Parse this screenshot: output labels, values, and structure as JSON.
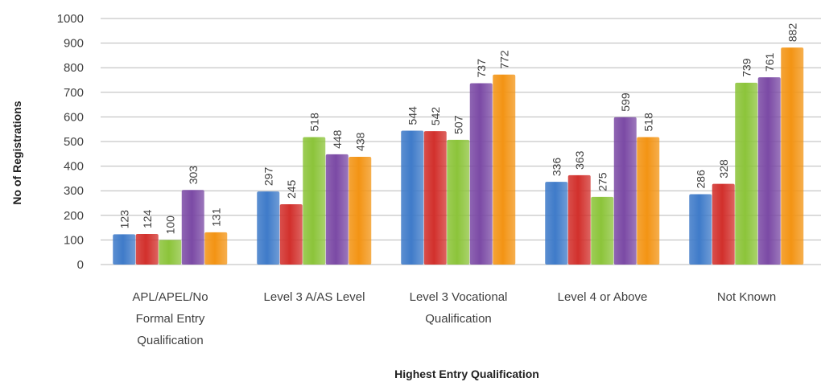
{
  "chart_data": {
    "type": "bar",
    "title": "",
    "xlabel": "Highest Entry Qualification",
    "ylabel": "No of Registrations",
    "ylim": [
      0,
      1000
    ],
    "yticks": [
      0,
      100,
      200,
      300,
      400,
      500,
      600,
      700,
      800,
      900,
      1000
    ],
    "grid": true,
    "categories": [
      [
        "APL/APEL/No",
        "Formal Entry",
        "Qualification"
      ],
      [
        "Level 3 A/AS Level"
      ],
      [
        "Level 3 Vocational",
        "Qualification"
      ],
      [
        "Level 4 or Above"
      ],
      [
        "Not Known"
      ]
    ],
    "series": [
      {
        "color": "#3f7bc9",
        "values": [
          123,
          297,
          544,
          336,
          286
        ]
      },
      {
        "color": "#d2302c",
        "values": [
          124,
          245,
          542,
          363,
          328
        ]
      },
      {
        "color": "#8cc43a",
        "values": [
          100,
          518,
          507,
          275,
          739
        ]
      },
      {
        "color": "#7b4aa5",
        "values": [
          303,
          448,
          737,
          599,
          761
        ]
      },
      {
        "color": "#f39414",
        "values": [
          131,
          438,
          772,
          518,
          882
        ]
      }
    ]
  }
}
